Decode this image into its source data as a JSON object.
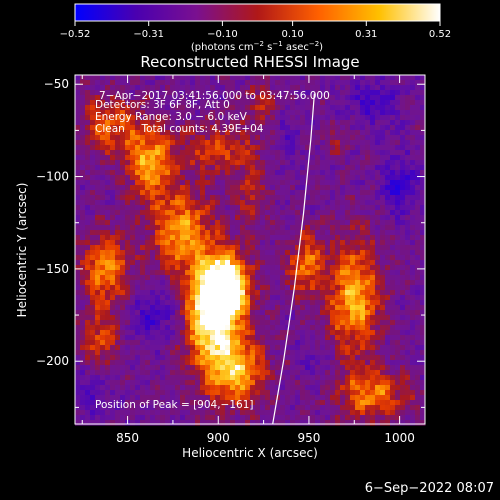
{
  "chart_data": {
    "type": "heatmap",
    "title": "Reconstructed RHESSI Image",
    "xlabel": "Heliocentric X (arcsec)",
    "ylabel": "Heliocentric Y (arcsec)",
    "xlim": [
      821,
      1014
    ],
    "ylim": [
      -234,
      -45
    ],
    "x_ticks": [
      850,
      900,
      950,
      1000
    ],
    "y_ticks": [
      -50,
      -100,
      -150,
      -200
    ],
    "x_tick_labels": [
      "850",
      "900",
      "950",
      "1000"
    ],
    "y_tick_labels": [
      "−50",
      "−100",
      "−150",
      "−200"
    ],
    "colorbar": {
      "range": [
        -0.52,
        0.52
      ],
      "ticks": [
        -0.52,
        -0.31,
        -0.1,
        0.1,
        0.31,
        0.52
      ],
      "tick_labels": [
        "−0.52",
        "−0.31",
        "−0.10",
        "0.10",
        "0.31",
        "0.52"
      ],
      "unit_main": "(photons cm",
      "unit_exp1": "−2",
      "unit_s": " s",
      "unit_exp2": "−1",
      "unit_asec": " asec",
      "unit_exp3": "−2",
      "unit_close": ")",
      "colors": [
        "#0000ff",
        "#4a00b0",
        "#7a1090",
        "#b01818",
        "#ff6000",
        "#ffc000",
        "#ffffff"
      ]
    },
    "annotations": [
      "7−Apr−2017 03:41:56.000 to 03:47:56.000",
      "Detectors: 3F 6F 8F, Att 0",
      "Energy Range: 3.0 − 6.0 keV",
      "Clean     Total counts: 4.39E+04"
    ],
    "peak_label": "Position of Peak = [904,−161]",
    "peak": {
      "x": 904,
      "y": -161
    },
    "limb": [
      [
        930,
        -234
      ],
      [
        936,
        -200
      ],
      [
        942,
        -160
      ],
      [
        947,
        -120
      ],
      [
        951,
        -80
      ],
      [
        953,
        -55
      ]
    ],
    "sources": [
      {
        "x": 904,
        "y": -161,
        "sx": 9,
        "sy": 13,
        "a": 0.75
      },
      {
        "x": 895,
        "y": -178,
        "sx": 10,
        "sy": 20,
        "a": 0.5
      },
      {
        "x": 880,
        "y": -130,
        "sx": 12,
        "sy": 16,
        "a": 0.4
      },
      {
        "x": 862,
        "y": -92,
        "sx": 9,
        "sy": 14,
        "a": 0.42
      },
      {
        "x": 840,
        "y": -72,
        "sx": 11,
        "sy": 11,
        "a": 0.3
      },
      {
        "x": 838,
        "y": -150,
        "sx": 9,
        "sy": 14,
        "a": 0.38
      },
      {
        "x": 835,
        "y": -190,
        "sx": 8,
        "sy": 12,
        "a": 0.25
      },
      {
        "x": 910,
        "y": -205,
        "sx": 11,
        "sy": 13,
        "a": 0.45
      },
      {
        "x": 900,
        "y": -85,
        "sx": 14,
        "sy": 10,
        "a": 0.25
      },
      {
        "x": 918,
        "y": -110,
        "sx": 6,
        "sy": 14,
        "a": 0.2
      },
      {
        "x": 925,
        "y": -60,
        "sx": 8,
        "sy": 8,
        "a": 0.18
      },
      {
        "x": 948,
        "y": -148,
        "sx": 7,
        "sy": 12,
        "a": 0.35
      },
      {
        "x": 975,
        "y": -165,
        "sx": 10,
        "sy": 22,
        "a": 0.45
      },
      {
        "x": 985,
        "y": -218,
        "sx": 14,
        "sy": 9,
        "a": 0.35
      },
      {
        "x": 965,
        "y": -80,
        "sx": 6,
        "sy": 6,
        "a": 0.12
      },
      {
        "x": 1000,
        "y": -105,
        "sx": 7,
        "sy": 10,
        "a": -0.25
      },
      {
        "x": 985,
        "y": -60,
        "sx": 10,
        "sy": 8,
        "a": -0.2
      },
      {
        "x": 865,
        "y": -175,
        "sx": 10,
        "sy": 10,
        "a": -0.2
      },
      {
        "x": 938,
        "y": -75,
        "sx": 5,
        "sy": 12,
        "a": -0.12
      },
      {
        "x": 830,
        "y": -215,
        "sx": 8,
        "sy": 10,
        "a": -0.15
      },
      {
        "x": 955,
        "y": -200,
        "sx": 6,
        "sy": 8,
        "a": -0.1
      }
    ]
  },
  "footer": {
    "timestamp": "6−Sep−2022 08:07"
  }
}
